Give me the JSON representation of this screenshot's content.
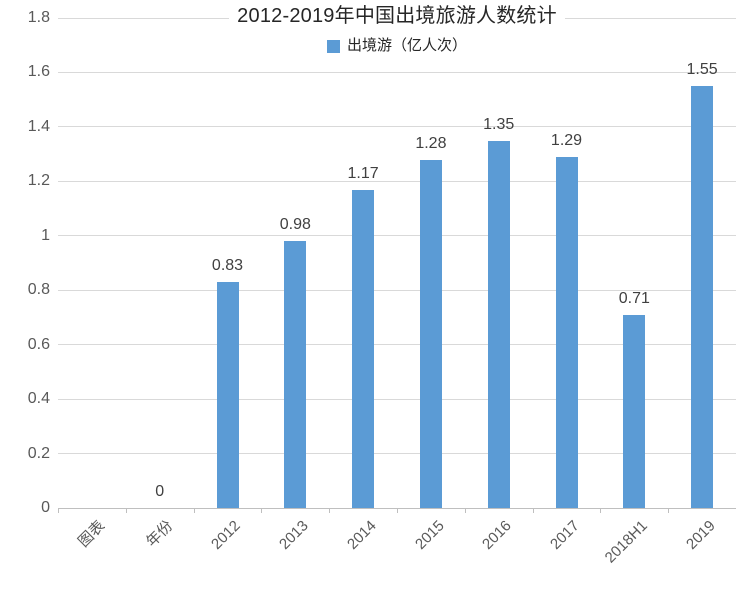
{
  "title": "2012-2019年中国出境旅游人数统计",
  "legend": {
    "label": "出境游（亿人次）",
    "swatch_color": "#5b9bd5"
  },
  "chart_data": {
    "type": "bar",
    "title": "2012-2019年中国出境旅游人数统计",
    "legend_entries": [
      "出境游（亿人次）"
    ],
    "legend_position": "top",
    "categories": [
      "图表",
      "年份",
      "2012",
      "2013",
      "2014",
      "2015",
      "2016",
      "2017",
      "2018H1",
      "2019"
    ],
    "values": [
      null,
      0,
      0.83,
      0.98,
      1.17,
      1.28,
      1.35,
      1.29,
      0.71,
      1.55
    ],
    "data_labels": [
      "",
      "0",
      "0.83",
      "0.98",
      "1.17",
      "1.28",
      "1.35",
      "1.29",
      "0.71",
      "1.55"
    ],
    "xlabel": "",
    "ylabel": "",
    "ylim": [
      0,
      1.8
    ],
    "y_tick_step": 0.2,
    "y_tick_labels": [
      "0",
      "0.2",
      "0.4",
      "0.6",
      "0.8",
      "1",
      "1.2",
      "1.4",
      "1.6",
      "1.8"
    ],
    "grid": true,
    "x_tick_label_rotation_deg": 45,
    "colors": {
      "bar": "#5b9bd5",
      "gridline": "#d9d9d9",
      "axis_line": "#bfbfbf",
      "tick_text": "#595959",
      "data_label": "#404040",
      "title_text": "#262626"
    }
  }
}
